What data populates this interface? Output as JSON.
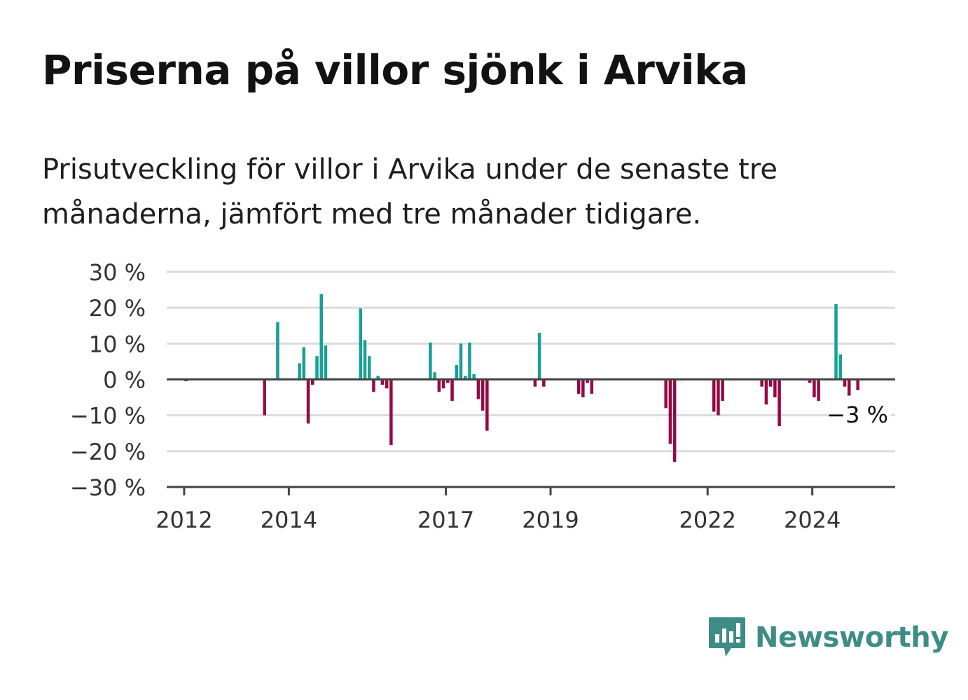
{
  "title": "Priserna på villor sjönk i Arvika",
  "subtitle": "Prisutveckling för villor i Arvika under de senaste tre månaderna, jämfört med tre månader tidigare.",
  "brand": {
    "name": "Newsworthy",
    "icon": "bar-chart-speech-bubble-icon"
  },
  "colors": {
    "positive": "#17a094",
    "negative": "#930a45",
    "grid": "#dcdcdc",
    "axis": "#444444",
    "brand": "#3d8d86"
  },
  "chart_data": {
    "type": "bar",
    "title": "",
    "xlabel": "",
    "ylabel": "",
    "ylim": [
      -30,
      30
    ],
    "ytick_values": [
      30,
      20,
      10,
      0,
      -10,
      -20,
      -30
    ],
    "ytick_labels": [
      "30 %",
      "20 %",
      "10 %",
      "0 %",
      "−10 %",
      "−20 %",
      "−30 %"
    ],
    "xlim": [
      "2011-09",
      "2025-08"
    ],
    "xtick_labels": [
      "2012",
      "2014",
      "2017",
      "2019",
      "2022",
      "2024"
    ],
    "xtick_dates": [
      "2012-01",
      "2014-01",
      "2017-01",
      "2019-01",
      "2022-01",
      "2024-01"
    ],
    "annotation": "−3 %",
    "series": [
      {
        "dates": [
          "2012-01",
          "2013-07",
          "2013-10",
          "2014-03",
          "2014-04",
          "2014-05",
          "2014-06",
          "2014-07",
          "2014-08",
          "2014-09",
          "2014-10",
          "2015-05",
          "2015-06",
          "2015-07",
          "2015-08",
          "2015-09",
          "2015-10",
          "2015-11",
          "2015-12",
          "2016-09",
          "2016-10",
          "2016-11",
          "2016-12",
          "2017-01",
          "2017-02",
          "2017-03",
          "2017-04",
          "2017-05",
          "2017-06",
          "2017-07",
          "2017-08",
          "2017-09",
          "2017-10",
          "2018-09",
          "2018-10",
          "2018-11",
          "2019-07",
          "2019-08",
          "2019-09",
          "2019-10",
          "2021-03",
          "2021-04",
          "2021-05",
          "2022-02",
          "2022-03",
          "2022-04",
          "2023-01",
          "2023-02",
          "2023-03",
          "2023-04",
          "2023-05",
          "2023-12",
          "2024-01",
          "2024-02",
          "2024-06",
          "2024-07",
          "2024-08",
          "2024-09",
          "2024-11"
        ],
        "values": [
          -0.5,
          -10,
          16,
          4.5,
          9,
          -12.3,
          -1.5,
          6.5,
          23.8,
          9.5,
          0,
          19.8,
          11,
          6.5,
          -3.5,
          1,
          -1.5,
          -2.5,
          -18.3,
          10.3,
          2,
          -3.5,
          -2.5,
          -1,
          -6,
          4,
          10,
          1,
          10.3,
          1.5,
          -5.5,
          -8.7,
          -14.3,
          -2,
          13,
          -2,
          -4,
          -5,
          -1,
          -4,
          -8,
          -18,
          -23,
          -9,
          -10,
          -6,
          -2,
          -7,
          -2,
          -5,
          -13,
          -1,
          -5,
          -6,
          21,
          7,
          -2,
          -4.5,
          -3
        ]
      }
    ]
  }
}
